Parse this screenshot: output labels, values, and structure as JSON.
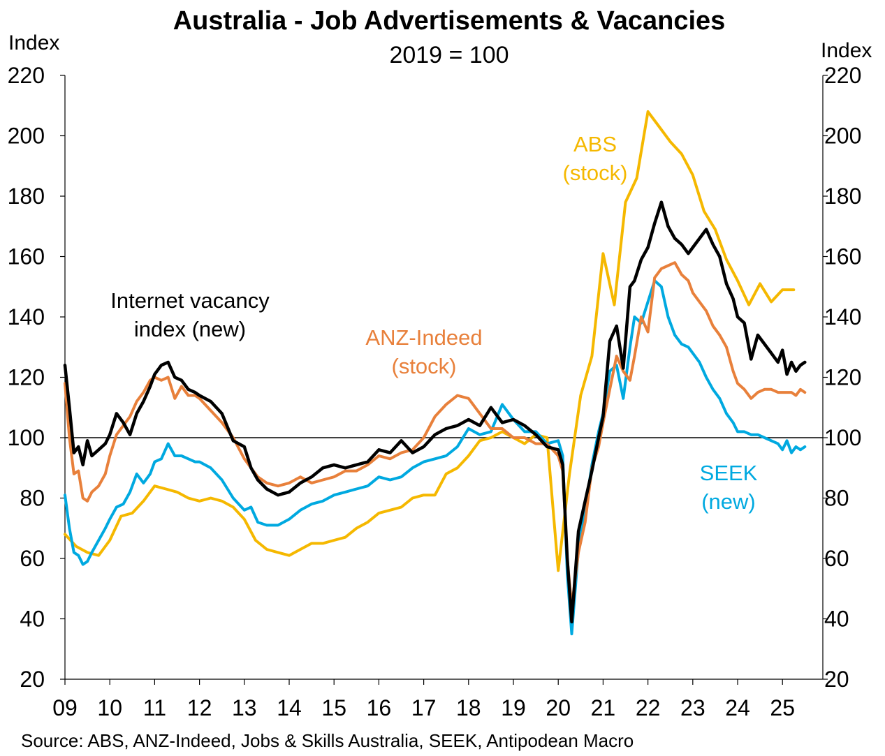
{
  "chart_data": {
    "type": "line",
    "title": "Australia - Job Advertisements & Vacancies",
    "subtitle": "2019 = 100",
    "ylabel_left": "Index",
    "ylabel_right": "Index",
    "ylim": [
      20,
      220
    ],
    "yticks": [
      20,
      40,
      60,
      80,
      100,
      120,
      140,
      160,
      180,
      200,
      220
    ],
    "x_domain": [
      2009.0,
      2025.9
    ],
    "xtick_labels": [
      "09",
      "10",
      "11",
      "12",
      "13",
      "14",
      "15",
      "16",
      "17",
      "18",
      "19",
      "20",
      "21",
      "22",
      "23",
      "24",
      "25"
    ],
    "xtick_positions": [
      2009,
      2010,
      2011,
      2012,
      2013,
      2014,
      2015,
      2016,
      2017,
      2018,
      2019,
      2020,
      2021,
      2022,
      2023,
      2024,
      2025
    ],
    "reference_line": 100,
    "source": "Source: ABS, ANZ-Indeed, Jobs & Skills Australia, SEEK, Antipodean Macro",
    "series": [
      {
        "name": "ABS (stock)",
        "label_lines": [
          "ABS",
          "(stock)"
        ],
        "color": "#F5B800",
        "x": [
          2009.0,
          2009.25,
          2009.5,
          2009.75,
          2010.0,
          2010.25,
          2010.5,
          2010.75,
          2011.0,
          2011.25,
          2011.5,
          2011.75,
          2012.0,
          2012.25,
          2012.5,
          2012.75,
          2013.0,
          2013.25,
          2013.5,
          2013.75,
          2014.0,
          2014.25,
          2014.5,
          2014.75,
          2015.0,
          2015.25,
          2015.5,
          2015.75,
          2016.0,
          2016.25,
          2016.5,
          2016.75,
          2017.0,
          2017.25,
          2017.5,
          2017.75,
          2018.0,
          2018.25,
          2018.5,
          2018.75,
          2019.0,
          2019.25,
          2019.5,
          2019.75,
          2020.0,
          2020.25,
          2020.5,
          2020.75,
          2021.0,
          2021.25,
          2021.5,
          2021.75,
          2022.0,
          2022.25,
          2022.5,
          2022.75,
          2023.0,
          2023.25,
          2023.5,
          2023.75,
          2024.0,
          2024.25,
          2024.5,
          2024.75,
          2025.0,
          2025.25
        ],
        "y": [
          68,
          64,
          62,
          61,
          66,
          74,
          75,
          79,
          84,
          83,
          82,
          80,
          79,
          80,
          79,
          77,
          73,
          66,
          63,
          62,
          61,
          63,
          65,
          65,
          66,
          67,
          70,
          72,
          75,
          76,
          77,
          80,
          81,
          81,
          88,
          90,
          94,
          99,
          100,
          102,
          100,
          98,
          101,
          100,
          56,
          88,
          114,
          127,
          161,
          144,
          178,
          186,
          208,
          203,
          198,
          194,
          187,
          175,
          169,
          159,
          152,
          144,
          151,
          145,
          149,
          149
        ]
      },
      {
        "name": "SEEK (new)",
        "label_lines": [
          "SEEK",
          "(new)"
        ],
        "color": "#00A9E0",
        "x": [
          2009.0,
          2009.1,
          2009.2,
          2009.3,
          2009.4,
          2009.5,
          2009.6,
          2009.75,
          2009.9,
          2010.0,
          2010.15,
          2010.3,
          2010.45,
          2010.6,
          2010.75,
          2010.9,
          2011.0,
          2011.15,
          2011.3,
          2011.45,
          2011.6,
          2011.75,
          2011.9,
          2012.0,
          2012.25,
          2012.5,
          2012.75,
          2013.0,
          2013.15,
          2013.3,
          2013.5,
          2013.75,
          2014.0,
          2014.25,
          2014.5,
          2014.75,
          2015.0,
          2015.25,
          2015.5,
          2015.75,
          2016.0,
          2016.25,
          2016.5,
          2016.75,
          2017.0,
          2017.25,
          2017.5,
          2017.75,
          2018.0,
          2018.25,
          2018.5,
          2018.75,
          2019.0,
          2019.25,
          2019.5,
          2019.75,
          2020.0,
          2020.1,
          2020.2,
          2020.3,
          2020.45,
          2020.6,
          2020.75,
          2020.9,
          2021.0,
          2021.15,
          2021.3,
          2021.45,
          2021.6,
          2021.7,
          2021.85,
          2022.0,
          2022.15,
          2022.3,
          2022.45,
          2022.6,
          2022.75,
          2022.9,
          2023.0,
          2023.15,
          2023.3,
          2023.45,
          2023.6,
          2023.75,
          2023.9,
          2024.0,
          2024.15,
          2024.3,
          2024.45,
          2024.6,
          2024.75,
          2024.9,
          2025.0,
          2025.1,
          2025.2,
          2025.3,
          2025.4,
          2025.5
        ],
        "y": [
          81,
          70,
          62,
          61,
          58,
          59,
          62,
          66,
          70,
          73,
          77,
          78,
          82,
          88,
          85,
          88,
          92,
          93,
          98,
          94,
          94,
          93,
          92,
          92,
          90,
          86,
          80,
          76,
          77,
          72,
          71,
          71,
          73,
          76,
          78,
          79,
          81,
          82,
          83,
          84,
          87,
          86,
          87,
          90,
          92,
          93,
          94,
          97,
          103,
          101,
          102,
          111,
          106,
          102,
          102,
          98,
          99,
          94,
          55,
          35,
          63,
          76,
          91,
          102,
          108,
          122,
          124,
          113,
          130,
          140,
          138,
          145,
          152,
          150,
          140,
          134,
          131,
          130,
          128,
          125,
          120,
          116,
          113,
          108,
          105,
          102,
          102,
          101,
          101,
          100,
          99,
          98,
          96,
          99,
          95,
          97,
          96,
          97
        ]
      },
      {
        "name": "ANZ-Indeed (stock)",
        "label_lines": [
          "ANZ-Indeed",
          "(stock)"
        ],
        "color": "#E8803B",
        "x": [
          2009.0,
          2009.1,
          2009.2,
          2009.3,
          2009.4,
          2009.5,
          2009.6,
          2009.75,
          2009.9,
          2010.0,
          2010.15,
          2010.3,
          2010.45,
          2010.6,
          2010.75,
          2010.9,
          2011.0,
          2011.15,
          2011.3,
          2011.45,
          2011.6,
          2011.75,
          2011.9,
          2012.0,
          2012.25,
          2012.5,
          2012.75,
          2013.0,
          2013.15,
          2013.3,
          2013.5,
          2013.75,
          2014.0,
          2014.25,
          2014.5,
          2014.75,
          2015.0,
          2015.25,
          2015.5,
          2015.75,
          2016.0,
          2016.25,
          2016.5,
          2016.75,
          2017.0,
          2017.25,
          2017.5,
          2017.75,
          2018.0,
          2018.25,
          2018.5,
          2018.75,
          2019.0,
          2019.25,
          2019.5,
          2019.75,
          2020.0,
          2020.1,
          2020.2,
          2020.3,
          2020.45,
          2020.6,
          2020.75,
          2020.9,
          2021.0,
          2021.15,
          2021.3,
          2021.45,
          2021.6,
          2021.7,
          2021.85,
          2022.0,
          2022.15,
          2022.3,
          2022.45,
          2022.6,
          2022.75,
          2022.9,
          2023.0,
          2023.15,
          2023.3,
          2023.45,
          2023.6,
          2023.75,
          2023.9,
          2024.0,
          2024.15,
          2024.3,
          2024.45,
          2024.6,
          2024.75,
          2024.9,
          2025.0,
          2025.1,
          2025.2,
          2025.3,
          2025.4,
          2025.5
        ],
        "y": [
          118,
          100,
          88,
          89,
          80,
          79,
          82,
          84,
          88,
          94,
          101,
          104,
          107,
          112,
          115,
          119,
          120,
          119,
          120,
          113,
          117,
          114,
          114,
          113,
          109,
          105,
          100,
          93,
          90,
          87,
          85,
          84,
          85,
          87,
          85,
          86,
          87,
          89,
          89,
          91,
          94,
          93,
          95,
          96,
          100,
          107,
          111,
          114,
          113,
          108,
          103,
          103,
          100,
          100,
          98,
          98,
          94,
          89,
          60,
          44,
          62,
          72,
          90,
          97,
          105,
          116,
          127,
          122,
          119,
          127,
          140,
          135,
          153,
          156,
          157,
          158,
          154,
          152,
          148,
          145,
          142,
          137,
          134,
          130,
          122,
          118,
          116,
          113,
          115,
          116,
          116,
          115,
          115,
          115,
          115,
          114,
          116,
          115
        ]
      },
      {
        "name": "Internet vacancy index (new)",
        "label_lines": [
          "Internet vacancy",
          "index (new)"
        ],
        "color": "#000000",
        "x": [
          2009.0,
          2009.1,
          2009.2,
          2009.3,
          2009.4,
          2009.5,
          2009.6,
          2009.75,
          2009.9,
          2010.0,
          2010.15,
          2010.3,
          2010.45,
          2010.6,
          2010.75,
          2010.9,
          2011.0,
          2011.15,
          2011.3,
          2011.45,
          2011.6,
          2011.75,
          2011.9,
          2012.0,
          2012.25,
          2012.5,
          2012.75,
          2013.0,
          2013.15,
          2013.3,
          2013.5,
          2013.75,
          2014.0,
          2014.25,
          2014.5,
          2014.75,
          2015.0,
          2015.25,
          2015.5,
          2015.75,
          2016.0,
          2016.25,
          2016.5,
          2016.75,
          2017.0,
          2017.25,
          2017.5,
          2017.75,
          2018.0,
          2018.25,
          2018.5,
          2018.75,
          2019.0,
          2019.25,
          2019.5,
          2019.75,
          2020.0,
          2020.1,
          2020.2,
          2020.3,
          2020.45,
          2020.6,
          2020.75,
          2020.9,
          2021.0,
          2021.15,
          2021.3,
          2021.45,
          2021.6,
          2021.7,
          2021.85,
          2022.0,
          2022.15,
          2022.3,
          2022.45,
          2022.6,
          2022.75,
          2022.9,
          2023.0,
          2023.15,
          2023.3,
          2023.45,
          2023.6,
          2023.75,
          2023.9,
          2024.0,
          2024.15,
          2024.3,
          2024.45,
          2024.6,
          2024.75,
          2024.9,
          2025.0,
          2025.1,
          2025.2,
          2025.3,
          2025.4,
          2025.5
        ],
        "y": [
          124,
          110,
          95,
          97,
          91,
          99,
          94,
          96,
          98,
          101,
          108,
          105,
          101,
          108,
          112,
          117,
          121,
          124,
          125,
          120,
          119,
          116,
          115,
          114,
          112,
          108,
          99,
          97,
          90,
          86,
          83,
          81,
          82,
          85,
          87,
          90,
          91,
          90,
          91,
          92,
          96,
          95,
          99,
          95,
          97,
          101,
          103,
          104,
          106,
          104,
          110,
          105,
          106,
          104,
          101,
          97,
          96,
          91,
          60,
          39,
          69,
          79,
          89,
          100,
          107,
          132,
          137,
          123,
          150,
          152,
          159,
          163,
          171,
          178,
          170,
          166,
          164,
          161,
          163,
          166,
          169,
          164,
          160,
          151,
          146,
          140,
          138,
          126,
          134,
          131,
          128,
          125,
          129,
          121,
          125,
          122,
          124,
          125
        ]
      }
    ]
  }
}
